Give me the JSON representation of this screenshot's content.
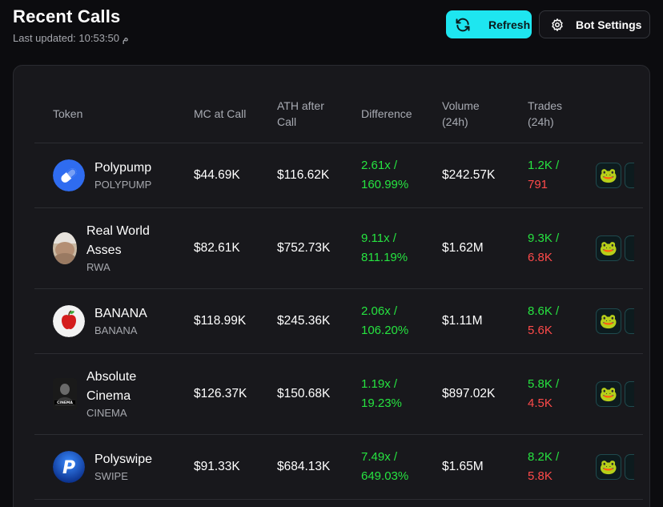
{
  "header": {
    "title": "Recent Calls",
    "last_updated": "Last updated: 10:53:50 م"
  },
  "toolbar": {
    "refresh_label": "Refresh",
    "settings_label": "Bot Settings",
    "refresh_icon": "refresh-icon",
    "settings_icon": "gear-icon",
    "accent_color": "#1ee6f0"
  },
  "table": {
    "columns": {
      "token": "Token",
      "mc_at_call": "MC at Call",
      "ath_line1": "ATH after",
      "ath_line2": "Call",
      "difference": "Difference",
      "volume_line1": "Volume",
      "volume_line2": "(24h)",
      "trades_line1": "Trades",
      "trades_line2": "(24h)"
    },
    "rows": [
      {
        "name_line1": "Polypump",
        "name_line2": "",
        "symbol": "POLYPUMP",
        "mc": "$44.69K",
        "ath": "$116.62K",
        "diff_x": "2.61x /",
        "diff_pct": "160.99%",
        "volume": "$242.57K",
        "buys": "1.2K /",
        "sells": "791",
        "avatar_icon": "pill-icon"
      },
      {
        "name_line1": "Real World",
        "name_line2": "Asses",
        "symbol": "RWA",
        "mc": "$82.61K",
        "ath": "$752.73K",
        "diff_x": "9.11x /",
        "diff_pct": "811.19%",
        "volume": "$1.62M",
        "buys": "9.3K /",
        "sells": "6.8K",
        "avatar_icon": "photo-avatar-icon"
      },
      {
        "name_line1": "BANANA",
        "name_line2": "",
        "symbol": "BANANA",
        "mc": "$118.99K",
        "ath": "$245.36K",
        "diff_x": "2.06x /",
        "diff_pct": "106.20%",
        "volume": "$1.11M",
        "buys": "8.6K /",
        "sells": "5.6K",
        "avatar_icon": "apple-icon"
      },
      {
        "name_line1": "Absolute",
        "name_line2": "Cinema",
        "symbol": "CINEMA",
        "mc": "$126.37K",
        "ath": "$150.68K",
        "diff_x": "1.19x /",
        "diff_pct": "19.23%",
        "volume": "$897.02K",
        "buys": "5.8K /",
        "sells": "4.5K",
        "avatar_icon": "cinema-avatar-icon"
      },
      {
        "name_line1": "Polyswipe",
        "name_line2": "",
        "symbol": "SWIPE",
        "mc": "$91.33K",
        "ath": "$684.13K",
        "diff_x": "7.49x /",
        "diff_pct": "649.03%",
        "volume": "$1.65M",
        "buys": "8.2K /",
        "sells": "5.8K",
        "avatar_icon": "paypal-p-icon"
      }
    ]
  }
}
